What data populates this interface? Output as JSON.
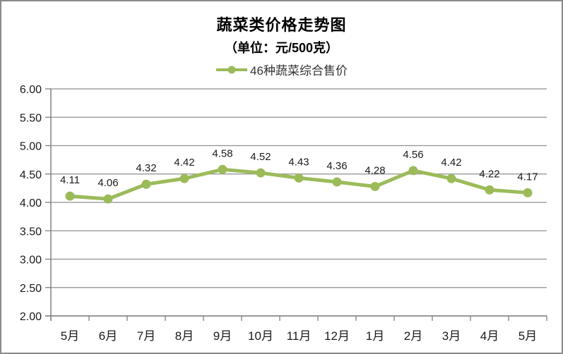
{
  "page": {
    "background": "#ffffff",
    "border_color": "#8a8a8a"
  },
  "chart_data": {
    "type": "line",
    "title": "蔬菜类价格走势图",
    "subtitle": "（单位：元/500克）",
    "legend": {
      "label": "46种蔬菜综合售价",
      "position": "top"
    },
    "categories": [
      "5月",
      "6月",
      "7月",
      "8月",
      "9月",
      "10月",
      "11月",
      "12月",
      "1月",
      "2月",
      "3月",
      "4月",
      "5月"
    ],
    "series": [
      {
        "name": "46种蔬菜综合售价",
        "values": [
          4.11,
          4.06,
          4.32,
          4.42,
          4.58,
          4.52,
          4.43,
          4.36,
          4.28,
          4.56,
          4.42,
          4.22,
          4.17
        ],
        "color": "#9BBB59"
      }
    ],
    "ylim": [
      2.0,
      6.0
    ],
    "y_tick_step": 0.5,
    "y_ticks": [
      "6.00",
      "5.50",
      "5.00",
      "4.50",
      "4.00",
      "3.50",
      "3.00",
      "2.50",
      "2.00"
    ],
    "grid": true,
    "data_labels": true,
    "colors": {
      "grid": "#8f8f8f",
      "axis": "#808080",
      "tick_label": "#1a1a1a",
      "data_label": "#1a1a1a"
    }
  }
}
